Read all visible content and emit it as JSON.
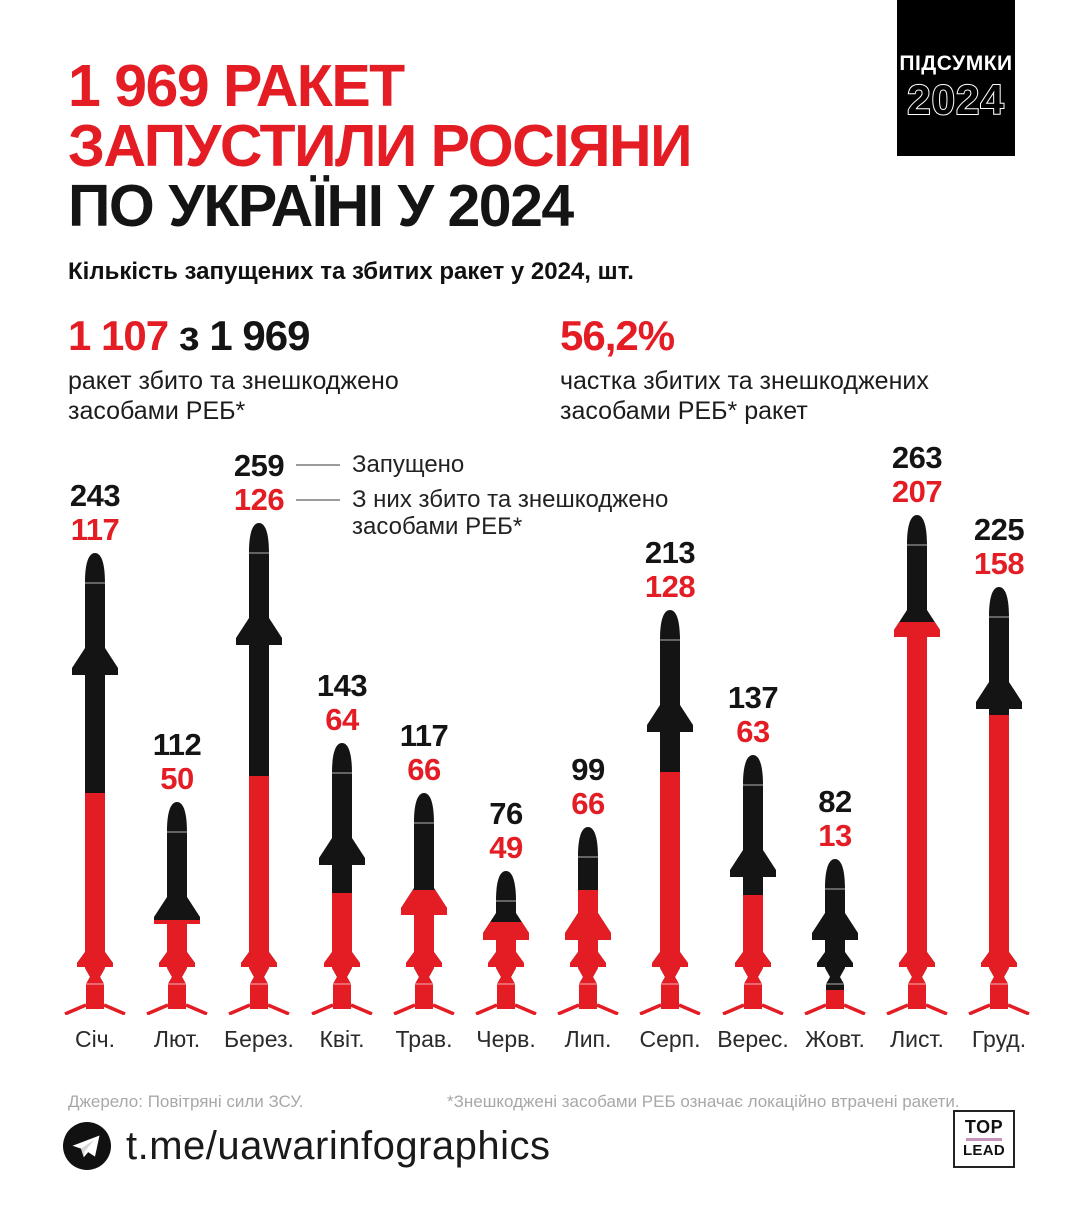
{
  "badge": {
    "line1": "ПІДСУМКИ",
    "line2": "2024"
  },
  "title": {
    "line1": "1 969 РАКЕТ",
    "line2": "ЗАПУСТИЛИ РОСІЯНИ",
    "line3": "ПО УКРАЇНІ У 2024"
  },
  "subtitle": "Кількість запущених та збитих ракет у 2024, шт.",
  "stats": {
    "left": {
      "value_red": "1 107",
      "value_black": "з 1 969",
      "desc_line1": "ракет збито та знешкоджено",
      "desc_line2": "засобами РЕБ*"
    },
    "right": {
      "value": "56,2%",
      "desc_line1": "частка збитих та знешкоджених",
      "desc_line2": "засобами РЕБ* ракет"
    }
  },
  "legend": {
    "launched": "Запущено",
    "downed_line1": "З них збито та знешкоджено",
    "downed_line2": "засобами РЕБ*"
  },
  "chart_data": {
    "type": "bar",
    "title": "Кількість запущених та збитих ракет у 2024, шт.",
    "categories": [
      "Січ.",
      "Лют.",
      "Берез.",
      "Квіт.",
      "Трав.",
      "Черв.",
      "Лип.",
      "Серп.",
      "Верес.",
      "Жовт.",
      "Лист.",
      "Груд."
    ],
    "series": [
      {
        "name": "Запущено",
        "values": [
          243,
          112,
          259,
          143,
          117,
          76,
          99,
          213,
          137,
          82,
          263,
          225
        ]
      },
      {
        "name": "З них збито та знешкоджено засобами РЕБ*",
        "values": [
          117,
          50,
          126,
          64,
          66,
          49,
          66,
          128,
          63,
          13,
          207,
          158
        ]
      }
    ],
    "totals": {
      "launched": 1969,
      "downed": 1107,
      "downed_share": "56,2%"
    },
    "ylim": [
      0,
      263
    ],
    "grid": false,
    "legend_position": "attached-to-third-bar",
    "colors": {
      "launched": "#141414",
      "downed": "#e41d25"
    }
  },
  "footnotes": {
    "source": "Джерело: Повітряні сили ЗСУ.",
    "note": "*Знешкоджені засобами РЕБ означає локаційно втрачені ракети."
  },
  "footer": {
    "telegram": "t.me/uawarinfographics",
    "logo_top": "TOP",
    "logo_bottom": "LEAD"
  }
}
